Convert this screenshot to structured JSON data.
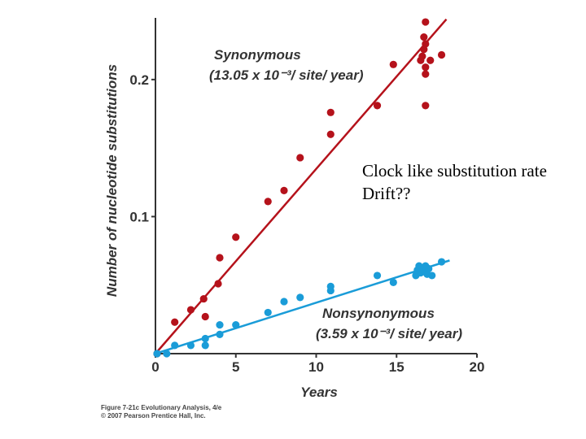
{
  "chart_data": {
    "type": "scatter",
    "xlabel": "Years",
    "ylabel": "Number of nucleotide substitutions",
    "xlim": [
      0,
      20
    ],
    "ylim": [
      0,
      0.245
    ],
    "xticks": [
      "0",
      "5",
      "10",
      "15",
      "20"
    ],
    "yticks": [
      {
        "value": 0.1,
        "label": "0.1"
      },
      {
        "value": 0.2,
        "label": "0.2"
      }
    ],
    "grid": false,
    "series": [
      {
        "name": "Synonymous",
        "rate": "(13.05 x 10⁻³/ site/ year)",
        "color": "#b5121b",
        "fit_end": [
          18.1,
          0.244
        ],
        "points": [
          [
            0.1,
            0.0
          ],
          [
            1.2,
            0.023
          ],
          [
            2.2,
            0.032
          ],
          [
            3.0,
            0.04
          ],
          [
            3.1,
            0.027
          ],
          [
            3.9,
            0.051
          ],
          [
            4.0,
            0.07
          ],
          [
            5.0,
            0.085
          ],
          [
            7.0,
            0.111
          ],
          [
            8.0,
            0.119
          ],
          [
            9.0,
            0.143
          ],
          [
            10.9,
            0.176
          ],
          [
            10.9,
            0.16
          ],
          [
            13.8,
            0.181
          ],
          [
            14.8,
            0.211
          ],
          [
            16.5,
            0.214
          ],
          [
            16.6,
            0.217
          ],
          [
            16.7,
            0.222
          ],
          [
            16.8,
            0.209
          ],
          [
            16.8,
            0.204
          ],
          [
            16.8,
            0.226
          ],
          [
            16.7,
            0.231
          ],
          [
            16.8,
            0.242
          ],
          [
            16.8,
            0.181
          ],
          [
            17.1,
            0.214
          ],
          [
            17.8,
            0.218
          ]
        ]
      },
      {
        "name": "Nonsynonymous",
        "rate": "(3.59 x 10⁻³/ site/ year)",
        "color": "#1a9cd8",
        "fit_end": [
          18.3,
          0.068
        ],
        "points": [
          [
            0.1,
            0.0
          ],
          [
            0.7,
            0.0
          ],
          [
            1.2,
            0.006
          ],
          [
            2.2,
            0.006
          ],
          [
            3.1,
            0.006
          ],
          [
            3.1,
            0.011
          ],
          [
            4.0,
            0.014
          ],
          [
            4.0,
            0.021
          ],
          [
            5.0,
            0.021
          ],
          [
            7.0,
            0.03
          ],
          [
            8.0,
            0.038
          ],
          [
            9.0,
            0.041
          ],
          [
            10.9,
            0.046
          ],
          [
            10.9,
            0.049
          ],
          [
            13.8,
            0.057
          ],
          [
            14.8,
            0.052
          ],
          [
            16.2,
            0.057
          ],
          [
            16.3,
            0.061
          ],
          [
            16.4,
            0.064
          ],
          [
            16.5,
            0.059
          ],
          [
            16.7,
            0.061
          ],
          [
            16.8,
            0.064
          ],
          [
            16.9,
            0.058
          ],
          [
            17.0,
            0.062
          ],
          [
            17.2,
            0.057
          ],
          [
            17.8,
            0.067
          ]
        ]
      }
    ]
  },
  "annotation": {
    "line1": "Clock like substitution rate",
    "line2": "Drift??"
  },
  "caption": {
    "line1": "Figure 7-21c  Evolutionary Analysis, 4/e",
    "line2": "© 2007 Pearson Prentice Hall, Inc."
  }
}
